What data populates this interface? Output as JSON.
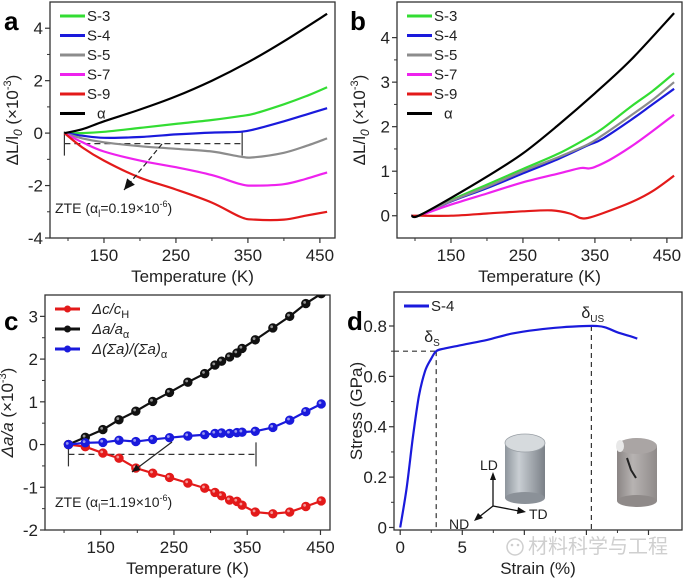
{
  "chart_data": [
    {
      "id": "a",
      "type": "line",
      "panel_label": "a",
      "title": "",
      "xlabel": "Temperature (K)",
      "ylabel": "ΔL/l0 (×10^-3)",
      "ylabel_parts": {
        "main": "ΔL/l",
        "sub": "0",
        "paren": "(×10",
        "sup": "-3",
        "close": ")"
      },
      "xlim": [
        75,
        471
      ],
      "ylim": [
        -4,
        5
      ],
      "xticks": [
        150,
        250,
        350,
        450
      ],
      "yticks": [
        -4,
        -2,
        0,
        2,
        4
      ],
      "legend_position": "top-left",
      "grid": false,
      "series": [
        {
          "name": "S-3",
          "color": "#33dd33",
          "x": [
            95,
            120,
            150,
            200,
            250,
            300,
            340,
            360,
            400,
            430,
            460
          ],
          "y": [
            0,
            0,
            0.05,
            0.2,
            0.35,
            0.5,
            0.65,
            0.75,
            1.1,
            1.4,
            1.75
          ]
        },
        {
          "name": "S-4",
          "color": "#1a1adc",
          "x": [
            95,
            120,
            150,
            200,
            250,
            300,
            340,
            360,
            400,
            430,
            460
          ],
          "y": [
            0,
            -0.1,
            -0.18,
            -0.15,
            -0.05,
            0.02,
            0.05,
            0.15,
            0.45,
            0.7,
            0.95
          ]
        },
        {
          "name": "S-5",
          "color": "#8c8c8c",
          "x": [
            95,
            120,
            150,
            200,
            250,
            300,
            340,
            360,
            400,
            430,
            460
          ],
          "y": [
            0,
            -0.2,
            -0.35,
            -0.5,
            -0.6,
            -0.7,
            -0.9,
            -0.92,
            -0.75,
            -0.5,
            -0.2
          ]
        },
        {
          "name": "S-7",
          "color": "#ee22ee",
          "x": [
            95,
            120,
            150,
            200,
            250,
            300,
            340,
            360,
            400,
            430,
            460
          ],
          "y": [
            0,
            -0.35,
            -0.7,
            -1.05,
            -1.3,
            -1.6,
            -1.95,
            -2.0,
            -1.95,
            -1.75,
            -1.5
          ]
        },
        {
          "name": "S-9",
          "color": "#e31a1a",
          "x": [
            95,
            120,
            150,
            200,
            250,
            300,
            340,
            360,
            400,
            430,
            460
          ],
          "y": [
            0,
            -0.55,
            -1.05,
            -1.7,
            -2.15,
            -2.65,
            -3.2,
            -3.3,
            -3.3,
            -3.15,
            -3.0
          ]
        },
        {
          "name": "α",
          "color": "#000000",
          "x": [
            95,
            120,
            150,
            200,
            250,
            300,
            350,
            400,
            460
          ],
          "y": [
            0,
            0.15,
            0.45,
            0.9,
            1.4,
            2.0,
            2.7,
            3.5,
            4.55
          ]
        }
      ],
      "annotations": {
        "zte_text": "ZTE (αl=0.19×10^-6)",
        "zte_parts": {
          "pre": "ZTE (α",
          "sub": "l",
          "mid": "=0.19×10",
          "sup": "-6",
          "close": ")"
        },
        "zte_range": [
          95,
          342
        ],
        "zte_level": -0.4
      }
    },
    {
      "id": "b",
      "type": "line",
      "panel_label": "b",
      "title": "",
      "xlabel": "Temperature (K)",
      "ylabel": "ΔL/l0 (×10^-3)",
      "ylabel_parts": {
        "main": "ΔL/l",
        "sub": "0",
        "paren": "(×10",
        "sup": "-3",
        "close": ")"
      },
      "xlim": [
        75,
        471
      ],
      "ylim": [
        -0.5,
        4.8
      ],
      "xticks": [
        150,
        250,
        350,
        450
      ],
      "yticks": [
        0,
        1,
        2,
        3,
        4
      ],
      "legend_position": "top-left",
      "grid": false,
      "series": [
        {
          "name": "S-3",
          "color": "#33dd33",
          "x": [
            95,
            105,
            150,
            200,
            250,
            300,
            340,
            360,
            400,
            430,
            460
          ],
          "y": [
            0,
            0,
            0.35,
            0.7,
            1.05,
            1.4,
            1.75,
            1.95,
            2.45,
            2.8,
            3.2
          ]
        },
        {
          "name": "S-4",
          "color": "#1a1adc",
          "x": [
            95,
            105,
            150,
            200,
            250,
            300,
            340,
            360,
            400,
            430,
            460
          ],
          "y": [
            0,
            0,
            0.32,
            0.62,
            0.95,
            1.28,
            1.58,
            1.72,
            2.15,
            2.5,
            2.85
          ]
        },
        {
          "name": "S-5",
          "color": "#8c8c8c",
          "x": [
            95,
            105,
            150,
            200,
            250,
            300,
            340,
            360,
            400,
            430,
            460
          ],
          "y": [
            0,
            0,
            0.33,
            0.65,
            1.0,
            1.32,
            1.6,
            1.8,
            2.25,
            2.6,
            3.0
          ]
        },
        {
          "name": "S-7",
          "color": "#ee22ee",
          "x": [
            95,
            105,
            150,
            200,
            250,
            300,
            330,
            345,
            370,
            400,
            430,
            460
          ],
          "y": [
            0,
            0,
            0.25,
            0.5,
            0.75,
            0.95,
            1.07,
            1.07,
            1.25,
            1.55,
            1.9,
            2.27
          ]
        },
        {
          "name": "S-9",
          "color": "#e31a1a",
          "x": [
            95,
            105,
            150,
            200,
            250,
            290,
            315,
            330,
            340,
            360,
            400,
            430,
            460
          ],
          "y": [
            0,
            0,
            0,
            0.05,
            0.1,
            0.12,
            0.05,
            -0.05,
            -0.05,
            0.05,
            0.3,
            0.55,
            0.9
          ]
        },
        {
          "name": "α",
          "color": "#000000",
          "x": [
            95,
            105,
            150,
            200,
            250,
            300,
            350,
            400,
            460
          ],
          "y": [
            0,
            0,
            0.4,
            0.88,
            1.4,
            2.05,
            2.75,
            3.5,
            4.55
          ]
        }
      ]
    },
    {
      "id": "c",
      "type": "line",
      "panel_label": "c",
      "title": "",
      "xlabel": "Temperature (K)",
      "ylabel": "Δa/a (×10^-3)",
      "ylabel_parts": {
        "main": "Δa/a",
        "paren": "(×10",
        "sup": "-3",
        "close": ")"
      },
      "xlim": [
        74,
        463
      ],
      "ylim": [
        -2,
        3.5
      ],
      "xticks": [
        150,
        250,
        350,
        450
      ],
      "yticks": [
        -2,
        -1,
        0,
        1,
        2,
        3
      ],
      "legend_position": "top-left",
      "grid": false,
      "markers": true,
      "series": [
        {
          "name": "Δc/cH",
          "legend_parts": {
            "pre": "Δc/c",
            "sub": "H"
          },
          "color": "#e31a1a",
          "x": [
            106,
            129,
            153,
            175,
            198,
            221,
            244,
            269,
            292,
            306,
            315,
            326,
            336,
            343,
            361,
            385,
            408,
            430,
            451
          ],
          "y": [
            0,
            -0.05,
            -0.2,
            -0.32,
            -0.55,
            -0.67,
            -0.77,
            -0.9,
            -1.02,
            -1.12,
            -1.2,
            -1.3,
            -1.33,
            -1.42,
            -1.58,
            -1.62,
            -1.58,
            -1.45,
            -1.32
          ]
        },
        {
          "name": "Δa/aα",
          "legend_parts": {
            "pre": "Δa/a",
            "sub": "α"
          },
          "color": "#111111",
          "x": [
            106,
            129,
            153,
            175,
            198,
            221,
            244,
            269,
            292,
            306,
            315,
            326,
            336,
            343,
            361,
            385,
            408,
            430,
            451
          ],
          "y": [
            0,
            0.17,
            0.35,
            0.58,
            0.78,
            1.01,
            1.22,
            1.46,
            1.66,
            1.86,
            1.95,
            2.05,
            2.14,
            2.25,
            2.45,
            2.73,
            3.0,
            3.3,
            3.53
          ]
        },
        {
          "name": "Δ(Σa)/(Σa)α",
          "legend_parts": {
            "pre": "Δ(Σa)/(Σa)",
            "sub": "α"
          },
          "color": "#1a1adc",
          "x": [
            106,
            129,
            153,
            175,
            198,
            221,
            244,
            269,
            292,
            306,
            315,
            326,
            336,
            343,
            361,
            385,
            408,
            430,
            451
          ],
          "y": [
            0,
            0.04,
            0.05,
            0.1,
            0.07,
            0.12,
            0.16,
            0.2,
            0.23,
            0.26,
            0.27,
            0.26,
            0.28,
            0.29,
            0.31,
            0.4,
            0.57,
            0.77,
            0.95
          ]
        }
      ],
      "annotations": {
        "zte_text": "ZTE (αl=1.19×10^-6)",
        "zte_parts": {
          "pre": "ZTE (α",
          "sub": "l",
          "mid": "=1.19×10",
          "sup": "-6",
          "close": ")"
        },
        "zte_range": [
          106,
          362
        ],
        "zte_level": -0.23
      }
    },
    {
      "id": "d",
      "type": "line",
      "panel_label": "d",
      "title": "",
      "xlabel": "Strain (%)",
      "ylabel": "Stress (GPa)",
      "xlim": [
        -0.5,
        22.7
      ],
      "ylim": [
        -0.01,
        0.935
      ],
      "xticks": [
        0,
        5,
        10,
        15,
        20
      ],
      "xtick_labels": [
        "0",
        "5",
        "",
        "",
        ""
      ],
      "yticks": [
        0,
        0.2,
        0.4,
        0.6,
        0.8
      ],
      "ytick_labels": [
        "0",
        "0.2",
        "0.4",
        "0.6",
        "0.8"
      ],
      "legend_position": "top-left",
      "grid": false,
      "series": [
        {
          "name": "S-4",
          "color": "#1a1adc",
          "x": [
            0,
            0.5,
            1.0,
            1.5,
            2.0,
            2.5,
            2.9,
            3.5,
            5,
            7,
            9,
            11,
            13,
            15,
            15.8,
            16.5,
            17.5,
            18.5,
            19.1
          ],
          "y": [
            0,
            0.15,
            0.35,
            0.52,
            0.62,
            0.67,
            0.7,
            0.71,
            0.725,
            0.745,
            0.77,
            0.785,
            0.795,
            0.8,
            0.8,
            0.795,
            0.775,
            0.76,
            0.75
          ]
        }
      ],
      "annotations": {
        "delta_s": {
          "label": "δS",
          "parts": {
            "pre": "δ",
            "sub": "S"
          },
          "strain": 2.9,
          "stress": 0.7
        },
        "delta_us": {
          "label": "δUS",
          "parts": {
            "pre": "δ",
            "sub": "US"
          },
          "strain": 15.4,
          "stress": 0.8
        },
        "axes_labels": {
          "ld": "LD",
          "nd": "ND",
          "td": "TD"
        }
      }
    }
  ],
  "watermark": "材料科学与工程"
}
